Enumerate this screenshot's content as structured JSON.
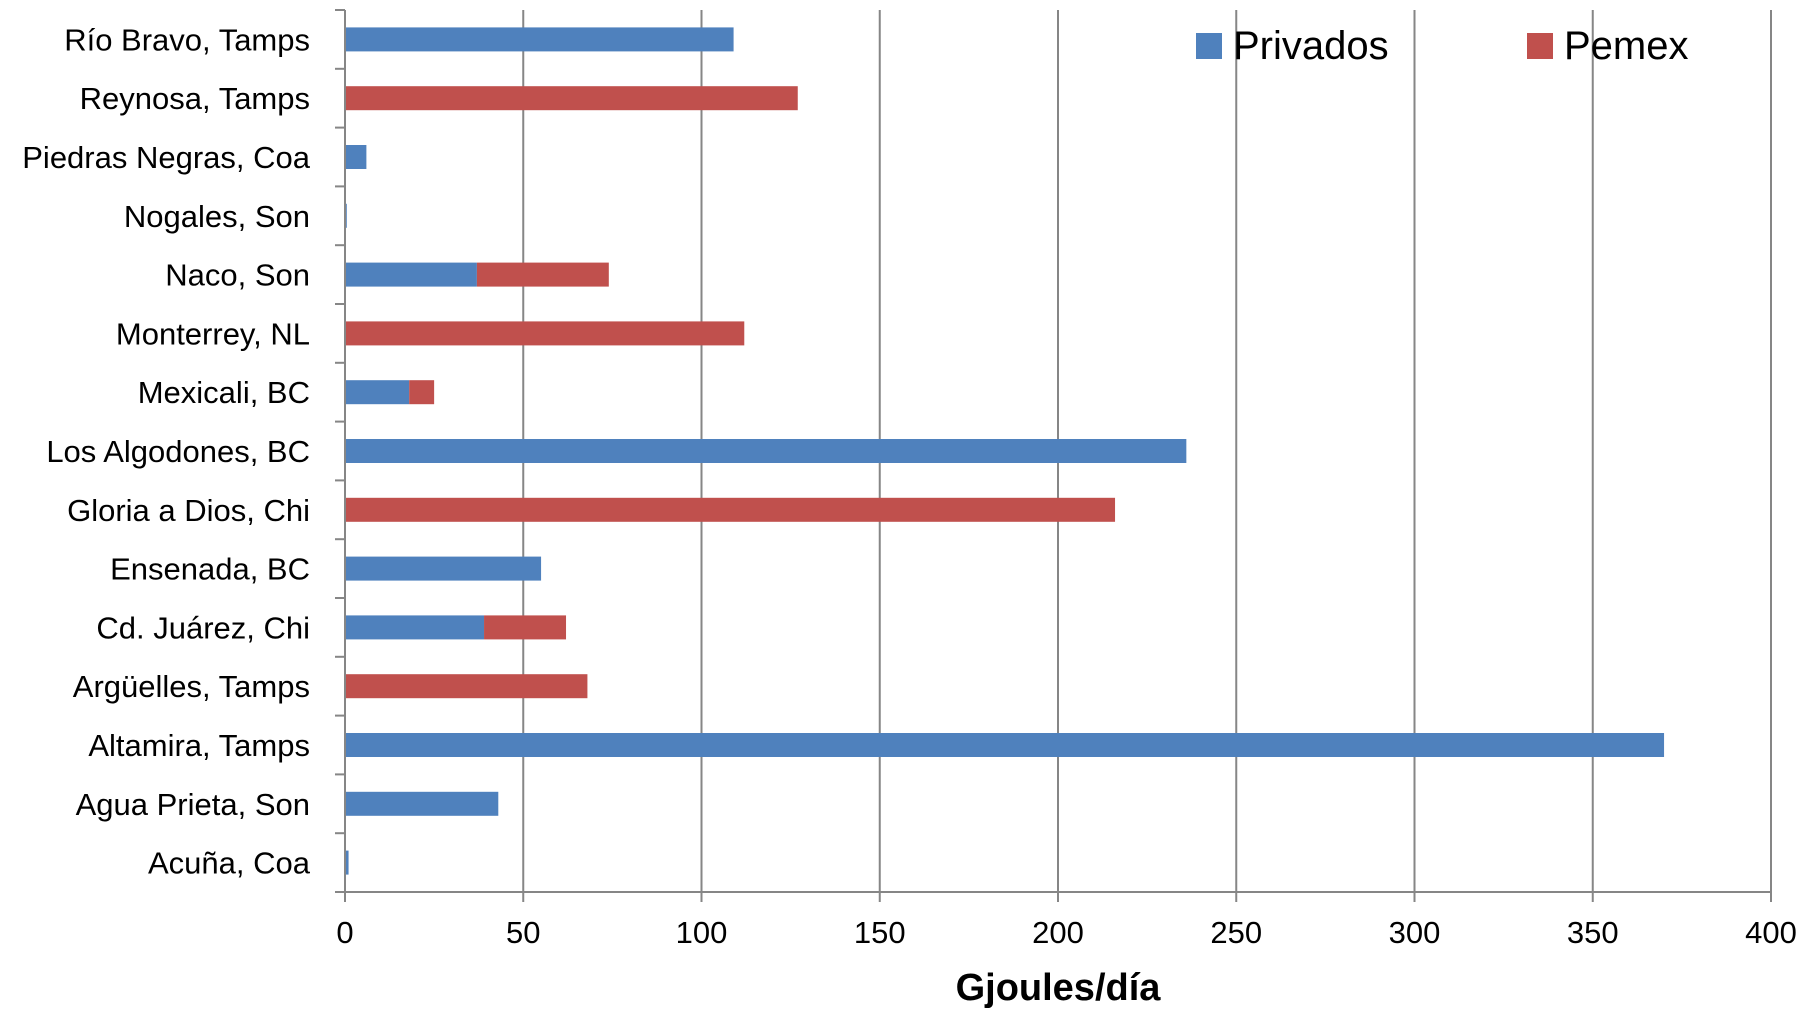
{
  "chart_data": {
    "type": "bar",
    "orientation": "horizontal",
    "stacked": true,
    "categories": [
      "Río Bravo, Tamps",
      "Reynosa, Tamps",
      "Piedras Negras, Coa",
      "Nogales, Son",
      "Naco, Son",
      "Monterrey, NL",
      "Mexicali, BC",
      "Los Algodones, BC",
      "Gloria a Dios, Chi",
      "Ensenada, BC",
      "Cd. Juárez, Chi",
      "Argüelles, Tamps",
      "Altamira, Tamps",
      "Agua Prieta, Son",
      "Acuña, Coa"
    ],
    "series": [
      {
        "name": "Privados",
        "color": "#4F81BD",
        "values": [
          109,
          0,
          6,
          0.5,
          37,
          0,
          18,
          236,
          0,
          55,
          39,
          0,
          370,
          43,
          1
        ]
      },
      {
        "name": "Pemex",
        "color": "#C0504D",
        "values": [
          0,
          127,
          0,
          0,
          37,
          112,
          7,
          0,
          216,
          0,
          23,
          68,
          0,
          0,
          0
        ]
      }
    ],
    "title": "",
    "xlabel": "Gjoules/día",
    "ylabel": "",
    "xlim": [
      0,
      400
    ],
    "xticks": [
      "0",
      "50",
      "100",
      "150",
      "200",
      "250",
      "300",
      "350",
      "400"
    ],
    "grid": "vertical",
    "legend": "top-right"
  }
}
